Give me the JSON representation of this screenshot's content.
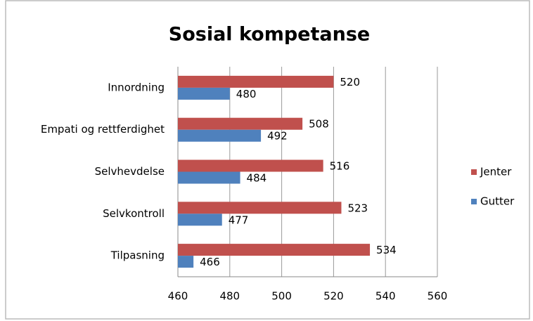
{
  "chart_data": {
    "type": "hbar",
    "title": "Sosial kompetanse",
    "categories": [
      "Innordning",
      "Empati og rettferdighet",
      "Selvhevdelse",
      "Selvkontroll",
      "Tilpasning"
    ],
    "series": [
      {
        "name": "Jenter",
        "color": "#c0504d",
        "values": [
          520,
          508,
          516,
          523,
          534
        ]
      },
      {
        "name": "Gutter",
        "color": "#4f81bd",
        "values": [
          480,
          492,
          484,
          477,
          466
        ]
      }
    ],
    "xlim": [
      460,
      560
    ],
    "xticks": [
      460,
      480,
      500,
      520,
      540,
      560
    ],
    "grid": true,
    "legend": "right"
  }
}
